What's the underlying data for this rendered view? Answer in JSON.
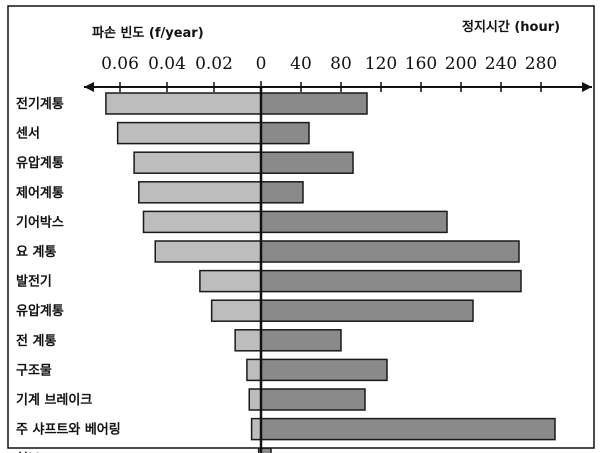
{
  "chart_data": {
    "type": "bar",
    "subtype": "diverging-horizontal",
    "left_axis_title": "파손 빈도 (f/year)",
    "right_axis_title": "정지시간 (hour)",
    "left_ticks": [
      "0.06",
      "0.04",
      "0.02"
    ],
    "center_tick": "0",
    "right_ticks": [
      "40",
      "80",
      "120",
      "160",
      "200",
      "240",
      "280"
    ],
    "left_range": [
      0,
      0.072
    ],
    "right_range": [
      0,
      290
    ],
    "categories": [
      "전기계통",
      "센서",
      "유압계통",
      "제어계통",
      "기어박스",
      "요 계통",
      "발전기",
      "유압계통",
      "전 계통",
      "구조물",
      "기계 브레이크",
      "주 샤프트와 베어링",
      "허브"
    ],
    "series": [
      {
        "side": "left",
        "values": [
          0.066,
          0.061,
          0.054,
          0.052,
          0.05,
          0.045,
          0.026,
          0.021,
          0.011,
          0.006,
          0.005,
          0.004,
          0.001
        ]
      },
      {
        "side": "right",
        "values": [
          106,
          48,
          92,
          42,
          186,
          258,
          260,
          212,
          80,
          126,
          104,
          294,
          10
        ]
      }
    ],
    "colors": {
      "left_bar": "#bdbdbd",
      "right_bar": "#8a8a8a",
      "outline": "#1a1a1a"
    }
  }
}
